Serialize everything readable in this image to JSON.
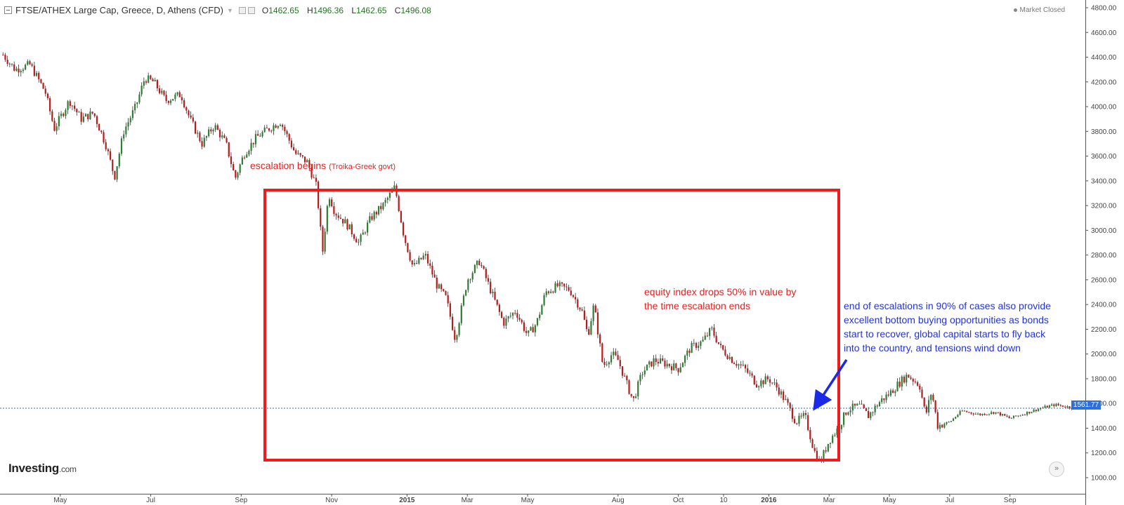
{
  "header": {
    "title": "FTSE/ATHEX Large Cap, Greece, D, Athens (CFD)",
    "open_label": "O",
    "open": "1462.65",
    "high_label": "H",
    "high": "1496.36",
    "low_label": "L",
    "low": "1462.65",
    "close_label": "C",
    "close": "1496.08"
  },
  "status": "Market Closed",
  "logo": {
    "main": "Investing",
    "suffix": ".com"
  },
  "price_tag": "1561.77",
  "annotations": {
    "escalation_begins": "escalation begins",
    "escalation_parties": "(Troika-Greek govt)",
    "drops_line1": "equity index drops 50% in value by",
    "drops_line2": "the time escalation ends",
    "end_line1": "end of escalations in 90% of cases also provide",
    "end_line2": "excellent bottom buying opportunities as bonds",
    "end_line3": "start to recover, global capital starts to fly back",
    "end_line4": "into the country, and tensions wind down"
  },
  "colors": {
    "up": "#2e7d32",
    "down": "#b71c1c",
    "annotation_red": "#e8201f",
    "annotation_blue": "#2233dd",
    "price_line": "#2f6fd8"
  },
  "chart_data": {
    "type": "candlestick",
    "y_ticks": [
      "1000.00",
      "1200.00",
      "1400.00",
      "1600.00",
      "1800.00",
      "2000.00",
      "2200.00",
      "2400.00",
      "2600.00",
      "2800.00",
      "3000.00",
      "3200.00",
      "3400.00",
      "3600.00",
      "3800.00",
      "4000.00",
      "4200.00",
      "4400.00",
      "4600.00",
      "4800.00"
    ],
    "ylim": [
      1000,
      4800
    ],
    "x_tick_labels": [
      "May",
      "Jul",
      "Sep",
      "Nov",
      "2015",
      "Mar",
      "May",
      "Aug",
      "Oct",
      "10",
      "2016",
      "Mar",
      "May",
      "Jul",
      "Sep"
    ],
    "x_tick_positions": [
      0.5,
      3.5,
      6.5,
      9.5,
      12.0,
      14.0,
      16.0,
      19.0,
      21.0,
      22.5,
      24.0,
      26.0,
      28.0,
      30.0,
      32.0
    ],
    "x_range": [
      -1.5,
      34.5
    ],
    "current_price": 1561.77,
    "price_path": [
      [
        -1.4,
        4420
      ],
      [
        -1.0,
        4300
      ],
      [
        -0.5,
        4340
      ],
      [
        0.0,
        4120
      ],
      [
        0.3,
        3820
      ],
      [
        0.8,
        4050
      ],
      [
        1.2,
        3900
      ],
      [
        1.6,
        3950
      ],
      [
        2.0,
        3700
      ],
      [
        2.3,
        3430
      ],
      [
        2.6,
        3800
      ],
      [
        3.0,
        4000
      ],
      [
        3.3,
        4230
      ],
      [
        3.6,
        4200
      ],
      [
        4.0,
        4050
      ],
      [
        4.5,
        4100
      ],
      [
        4.8,
        3900
      ],
      [
        5.2,
        3700
      ],
      [
        5.6,
        3850
      ],
      [
        6.0,
        3700
      ],
      [
        6.3,
        3420
      ],
      [
        6.6,
        3620
      ],
      [
        7.0,
        3750
      ],
      [
        7.4,
        3820
      ],
      [
        7.8,
        3880
      ],
      [
        8.3,
        3620
      ],
      [
        8.7,
        3550
      ],
      [
        9.0,
        3350
      ],
      [
        9.2,
        2820
      ],
      [
        9.4,
        3300
      ],
      [
        9.6,
        3150
      ],
      [
        10.0,
        3050
      ],
      [
        10.4,
        2900
      ],
      [
        10.8,
        3100
      ],
      [
        11.2,
        3200
      ],
      [
        11.6,
        3350
      ],
      [
        11.9,
        2950
      ],
      [
        12.2,
        2700
      ],
      [
        12.6,
        2800
      ],
      [
        13.0,
        2550
      ],
      [
        13.3,
        2450
      ],
      [
        13.6,
        2120
      ],
      [
        14.0,
        2600
      ],
      [
        14.4,
        2750
      ],
      [
        14.8,
        2500
      ],
      [
        15.2,
        2250
      ],
      [
        15.6,
        2350
      ],
      [
        16.0,
        2150
      ],
      [
        16.3,
        2250
      ],
      [
        16.6,
        2500
      ],
      [
        17.0,
        2550
      ],
      [
        17.4,
        2520
      ],
      [
        17.8,
        2350
      ],
      [
        18.0,
        2150
      ],
      [
        18.2,
        2400
      ],
      [
        18.5,
        1900
      ],
      [
        18.8,
        2000
      ],
      [
        19.0,
        1950
      ],
      [
        19.3,
        1750
      ],
      [
        19.5,
        1620
      ],
      [
        19.8,
        1850
      ],
      [
        20.2,
        1950
      ],
      [
        20.6,
        1920
      ],
      [
        21.0,
        1880
      ],
      [
        21.4,
        2050
      ],
      [
        21.8,
        2100
      ],
      [
        22.1,
        2200
      ],
      [
        22.4,
        2050
      ],
      [
        22.8,
        1950
      ],
      [
        23.2,
        1880
      ],
      [
        23.6,
        1760
      ],
      [
        24.0,
        1800
      ],
      [
        24.3,
        1720
      ],
      [
        24.6,
        1600
      ],
      [
        24.9,
        1450
      ],
      [
        25.2,
        1500
      ],
      [
        25.5,
        1220
      ],
      [
        25.7,
        1120
      ],
      [
        26.0,
        1300
      ],
      [
        26.3,
        1400
      ],
      [
        26.6,
        1550
      ],
      [
        27.0,
        1580
      ],
      [
        27.3,
        1500
      ],
      [
        27.7,
        1620
      ],
      [
        28.0,
        1680
      ],
      [
        28.3,
        1760
      ],
      [
        28.6,
        1830
      ],
      [
        29.0,
        1750
      ],
      [
        29.2,
        1500
      ],
      [
        29.4,
        1700
      ],
      [
        29.6,
        1420
      ],
      [
        30.0,
        1450
      ],
      [
        30.4,
        1540
      ],
      [
        31.0,
        1510
      ],
      [
        31.5,
        1530
      ],
      [
        32.0,
        1480
      ],
      [
        32.5,
        1520
      ],
      [
        33.0,
        1560
      ],
      [
        33.5,
        1590
      ],
      [
        34.2,
        1560
      ]
    ]
  }
}
